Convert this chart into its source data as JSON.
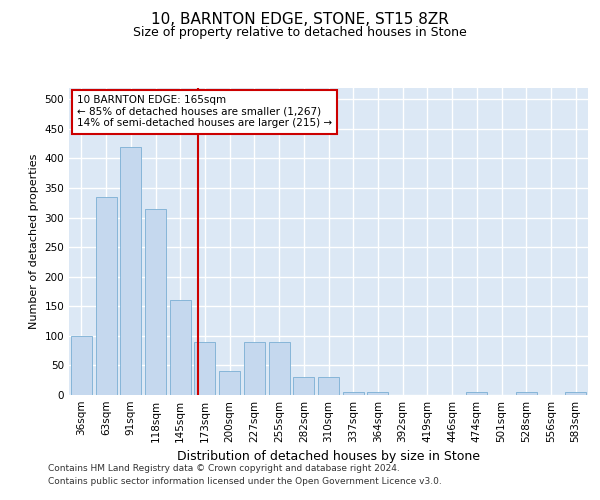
{
  "title": "10, BARNTON EDGE, STONE, ST15 8ZR",
  "subtitle": "Size of property relative to detached houses in Stone",
  "xlabel": "Distribution of detached houses by size in Stone",
  "ylabel": "Number of detached properties",
  "bar_labels": [
    "36sqm",
    "63sqm",
    "91sqm",
    "118sqm",
    "145sqm",
    "173sqm",
    "200sqm",
    "227sqm",
    "255sqm",
    "282sqm",
    "310sqm",
    "337sqm",
    "364sqm",
    "392sqm",
    "419sqm",
    "446sqm",
    "474sqm",
    "501sqm",
    "528sqm",
    "556sqm",
    "583sqm"
  ],
  "bar_values": [
    100,
    335,
    420,
    315,
    160,
    90,
    40,
    90,
    90,
    30,
    30,
    5,
    5,
    0,
    0,
    0,
    5,
    0,
    5,
    0,
    5
  ],
  "bar_color": "#c5d8ee",
  "bar_edge_color": "#7aafd4",
  "vline_color": "#cc0000",
  "annotation_text": "10 BARNTON EDGE: 165sqm\n← 85% of detached houses are smaller (1,267)\n14% of semi-detached houses are larger (215) →",
  "annotation_box_color": "#ffffff",
  "annotation_box_edge": "#cc0000",
  "ylim": [
    0,
    520
  ],
  "yticks": [
    0,
    50,
    100,
    150,
    200,
    250,
    300,
    350,
    400,
    450,
    500
  ],
  "background_color": "#dce8f5",
  "grid_color": "#ffffff",
  "footer_line1": "Contains HM Land Registry data © Crown copyright and database right 2024.",
  "footer_line2": "Contains public sector information licensed under the Open Government Licence v3.0.",
  "title_fontsize": 11,
  "subtitle_fontsize": 9,
  "xlabel_fontsize": 9,
  "ylabel_fontsize": 8,
  "tick_fontsize": 7.5,
  "footer_fontsize": 6.5
}
